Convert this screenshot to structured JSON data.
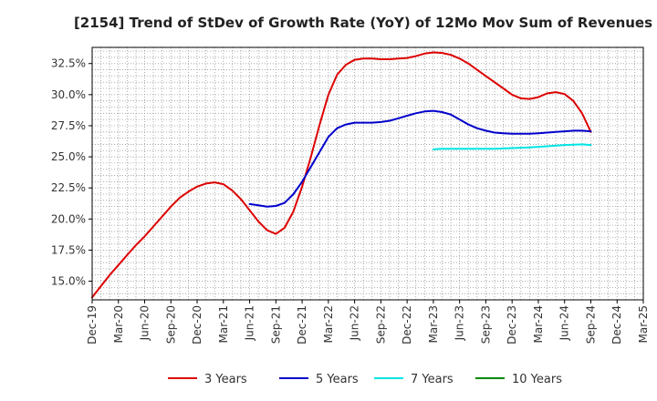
{
  "chart_data": {
    "type": "line",
    "title": "[2154]  Trend of StDev of Growth Rate (YoY) of 12Mo Mov Sum of Revenues",
    "xlabel": "",
    "ylabel": "",
    "x_ticks": [
      "Dec-19",
      "Mar-20",
      "Jun-20",
      "Sep-20",
      "Dec-20",
      "Mar-21",
      "Jun-21",
      "Sep-21",
      "Dec-21",
      "Mar-22",
      "Jun-22",
      "Sep-22",
      "Dec-22",
      "Mar-23",
      "Jun-23",
      "Sep-23",
      "Dec-23",
      "Mar-24",
      "Jun-24",
      "Sep-24",
      "Dec-24",
      "Mar-25"
    ],
    "y_ticks": [
      "15.0%",
      "17.5%",
      "20.0%",
      "22.5%",
      "25.0%",
      "27.5%",
      "30.0%",
      "32.5%"
    ],
    "y_tick_values": [
      15.0,
      17.5,
      20.0,
      22.5,
      25.0,
      27.5,
      30.0,
      32.5
    ],
    "ylim": [
      13.5,
      33.8
    ],
    "x_range_months": [
      0,
      63
    ],
    "grid": true,
    "legend_position": "bottom",
    "series": [
      {
        "name": "3 Years",
        "color": "#dd0000",
        "points": [
          [
            0,
            13.7
          ],
          [
            1,
            14.6
          ],
          [
            2,
            15.5
          ],
          [
            3,
            16.3
          ],
          [
            4,
            17.1
          ],
          [
            5,
            17.9
          ],
          [
            6,
            18.6
          ],
          [
            7,
            19.4
          ],
          [
            8,
            20.2
          ],
          [
            9,
            21.0
          ],
          [
            10,
            21.7
          ],
          [
            11,
            22.2
          ],
          [
            12,
            22.6
          ],
          [
            13,
            22.85
          ],
          [
            14,
            22.95
          ],
          [
            15,
            22.8
          ],
          [
            16,
            22.3
          ],
          [
            17,
            21.6
          ],
          [
            18,
            20.7
          ],
          [
            19,
            19.8
          ],
          [
            20,
            19.1
          ],
          [
            21,
            18.8
          ],
          [
            22,
            19.3
          ],
          [
            23,
            20.6
          ],
          [
            24,
            22.6
          ],
          [
            25,
            25.0
          ],
          [
            26,
            27.6
          ],
          [
            27,
            30.0
          ],
          [
            28,
            31.6
          ],
          [
            29,
            32.4
          ],
          [
            30,
            32.8
          ],
          [
            31,
            32.9
          ],
          [
            32,
            32.9
          ],
          [
            33,
            32.85
          ],
          [
            34,
            32.85
          ],
          [
            35,
            32.9
          ],
          [
            36,
            32.95
          ],
          [
            37,
            33.1
          ],
          [
            38,
            33.3
          ],
          [
            39,
            33.4
          ],
          [
            40,
            33.35
          ],
          [
            41,
            33.2
          ],
          [
            42,
            32.9
          ],
          [
            43,
            32.5
          ],
          [
            44,
            32.0
          ],
          [
            45,
            31.5
          ],
          [
            46,
            31.0
          ],
          [
            47,
            30.5
          ],
          [
            48,
            30.0
          ],
          [
            49,
            29.7
          ],
          [
            50,
            29.65
          ],
          [
            51,
            29.8
          ],
          [
            52,
            30.1
          ],
          [
            53,
            30.2
          ],
          [
            54,
            30.05
          ],
          [
            55,
            29.5
          ],
          [
            56,
            28.5
          ],
          [
            57,
            27.0
          ]
        ]
      },
      {
        "name": "5 Years",
        "color": "#0000cc",
        "points": [
          [
            18,
            21.2
          ],
          [
            19,
            21.1
          ],
          [
            20,
            21.0
          ],
          [
            21,
            21.05
          ],
          [
            22,
            21.3
          ],
          [
            23,
            22.0
          ],
          [
            24,
            23.0
          ],
          [
            25,
            24.2
          ],
          [
            26,
            25.4
          ],
          [
            27,
            26.6
          ],
          [
            28,
            27.3
          ],
          [
            29,
            27.6
          ],
          [
            30,
            27.75
          ],
          [
            31,
            27.75
          ],
          [
            32,
            27.75
          ],
          [
            33,
            27.8
          ],
          [
            34,
            27.9
          ],
          [
            35,
            28.1
          ],
          [
            36,
            28.3
          ],
          [
            37,
            28.5
          ],
          [
            38,
            28.65
          ],
          [
            39,
            28.7
          ],
          [
            40,
            28.6
          ],
          [
            41,
            28.4
          ],
          [
            42,
            28.0
          ],
          [
            43,
            27.6
          ],
          [
            44,
            27.3
          ],
          [
            45,
            27.1
          ],
          [
            46,
            26.95
          ],
          [
            47,
            26.9
          ],
          [
            48,
            26.85
          ],
          [
            49,
            26.85
          ],
          [
            50,
            26.85
          ],
          [
            51,
            26.9
          ],
          [
            52,
            26.95
          ],
          [
            53,
            27.0
          ],
          [
            54,
            27.05
          ],
          [
            55,
            27.1
          ],
          [
            56,
            27.1
          ],
          [
            57,
            27.05
          ]
        ]
      },
      {
        "name": "7 Years",
        "color": "#00e5e5",
        "points": [
          [
            39,
            25.6
          ],
          [
            40,
            25.65
          ],
          [
            42,
            25.65
          ],
          [
            44,
            25.65
          ],
          [
            46,
            25.65
          ],
          [
            48,
            25.7
          ],
          [
            50,
            25.75
          ],
          [
            52,
            25.85
          ],
          [
            54,
            25.95
          ],
          [
            56,
            26.0
          ],
          [
            57,
            25.95
          ]
        ]
      },
      {
        "name": "10 Years",
        "color": "#008800",
        "points": []
      }
    ]
  }
}
